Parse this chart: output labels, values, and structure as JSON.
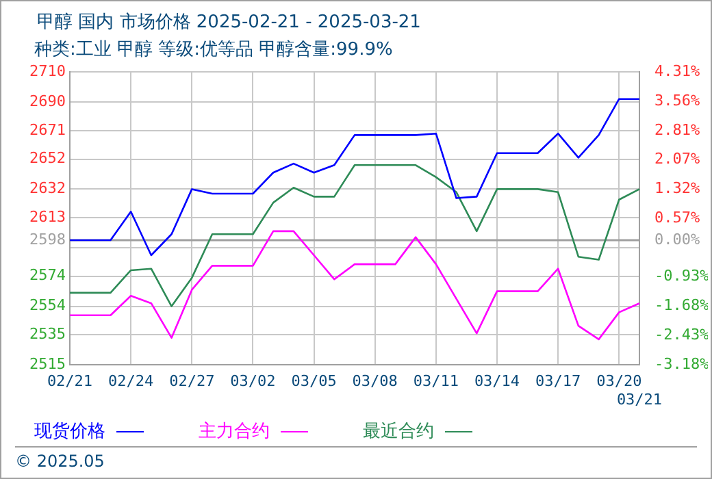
{
  "chart_data": {
    "type": "line",
    "title": "甲醇 国内 市场价格 2025-02-21 - 2025-03-21",
    "subtitle": "种类:工业 甲醇 等级:优等品 甲醇含量:99.9%",
    "annotations": [
      "© 2025.05"
    ],
    "categories": [
      "02/21",
      null,
      null,
      "02/24",
      null,
      null,
      "02/27",
      null,
      null,
      "03/02",
      null,
      null,
      "03/05",
      null,
      null,
      "03/08",
      null,
      null,
      "03/11",
      null,
      null,
      "03/14",
      null,
      null,
      "03/17",
      null,
      null,
      "03/20",
      "03/21"
    ],
    "series": [
      {
        "name": "现货价格",
        "color": "#0000ff",
        "values": [
          2598,
          2598,
          2598,
          2617,
          2588,
          2602,
          2632,
          2629,
          2629,
          2629,
          2643,
          2649,
          2643,
          2648,
          2668,
          2668,
          2668,
          2668,
          2669,
          2626,
          2627,
          2656,
          2656,
          2656,
          2669,
          2653,
          2668,
          2692,
          2692
        ]
      },
      {
        "name": "主力合约",
        "color": "#ff00ff",
        "values": [
          2548,
          2548,
          2548,
          2561,
          2556,
          2533,
          2565,
          2581,
          2581,
          2581,
          2604,
          2604,
          2588,
          2572,
          2582,
          2582,
          2582,
          2600,
          2582,
          2559,
          2536,
          2564,
          2564,
          2564,
          2579,
          2541,
          2532,
          2550,
          2556
        ]
      },
      {
        "name": "最近合约",
        "color": "#2e8b57",
        "values": [
          2563,
          2563,
          2563,
          2578,
          2579,
          2554,
          2573,
          2602,
          2602,
          2602,
          2623,
          2633,
          2627,
          2627,
          2648,
          2648,
          2648,
          2648,
          2640,
          2630,
          2604,
          2632,
          2632,
          2632,
          2630,
          2587,
          2585,
          2625,
          2632
        ]
      }
    ],
    "ylim": [
      2515,
      2710
    ],
    "yticks": [
      2710,
      2690,
      2671,
      2652,
      2632,
      2613,
      2598,
      {
        "value": 2593,
        "label": null
      },
      2574,
      2554,
      2535,
      2515
    ],
    "y2lim": [
      -3.18,
      4.31
    ],
    "y2ticks": [
      {
        "value": 4.31,
        "label": "4.31%"
      },
      {
        "value": 3.56,
        "label": "3.56%"
      },
      {
        "value": 2.81,
        "label": "2.81%"
      },
      {
        "value": 2.07,
        "label": "2.07%"
      },
      {
        "value": 1.32,
        "label": "1.32%"
      },
      {
        "value": 0.57,
        "label": "0.57%"
      },
      {
        "value": 0,
        "label": "0.00%"
      },
      {
        "value": -0.93,
        "label": "-0.93%"
      },
      {
        "value": -1.68,
        "label": "-1.68%"
      },
      {
        "value": -2.43,
        "label": "-2.43%"
      },
      {
        "value": -3.18,
        "label": "-3.18%"
      }
    ],
    "ref_lines": [
      {
        "axis": "y",
        "value": 2598,
        "color": "#a0a0a0"
      }
    ],
    "grid": true,
    "legend": "bottom",
    "marker": "none",
    "line_style": "solid"
  }
}
